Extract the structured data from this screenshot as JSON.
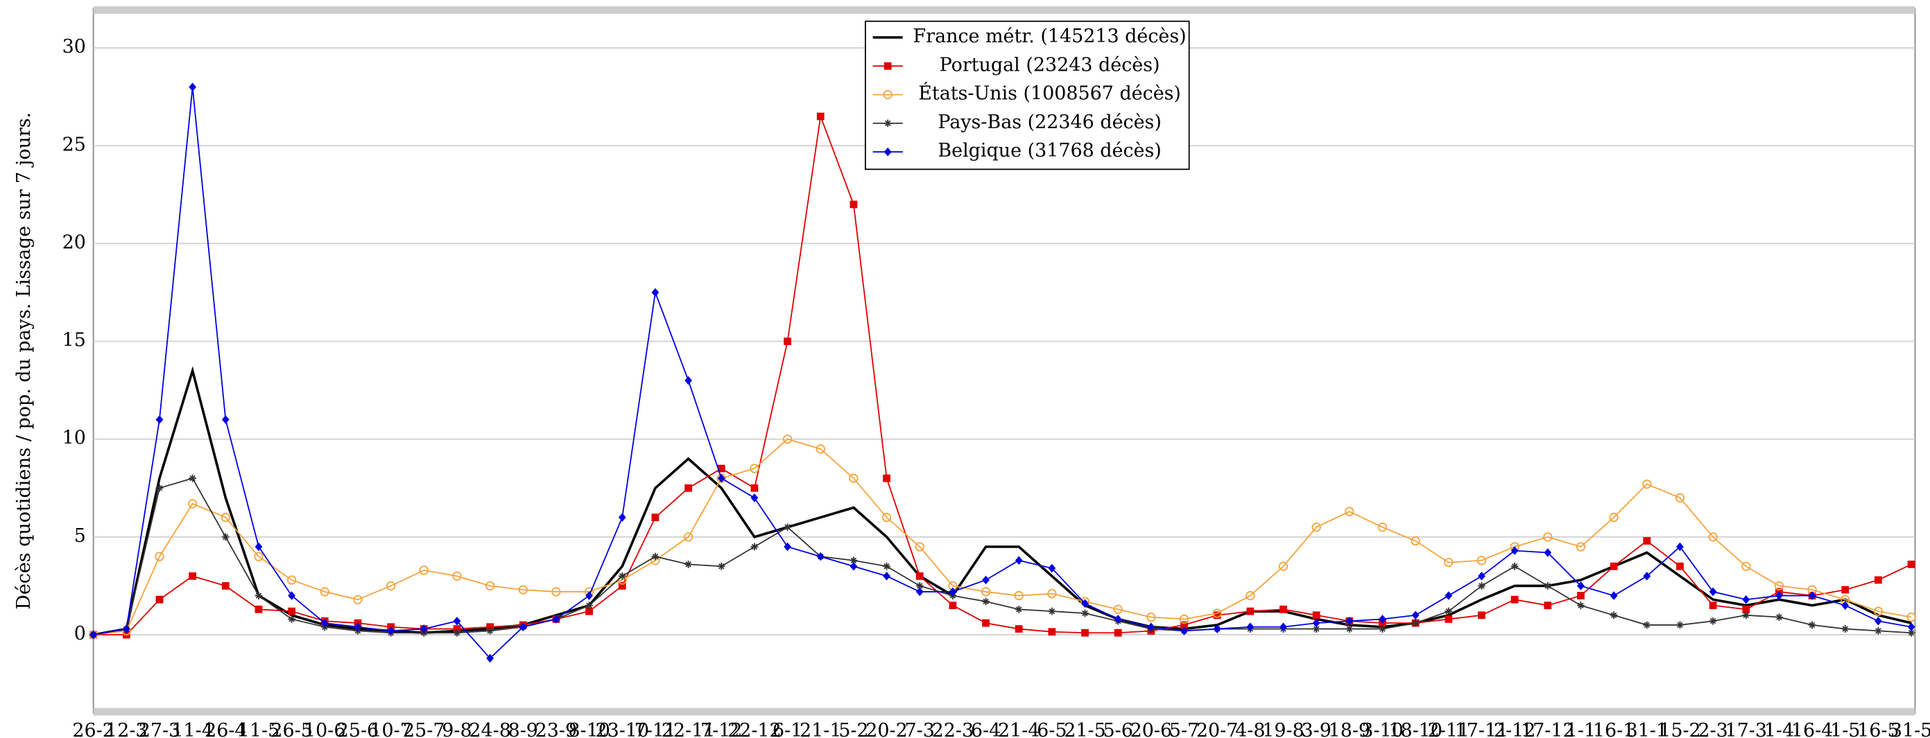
{
  "chart_data": {
    "type": "line",
    "y_label": "Décès quotidiens / pop. du pays. Lissage sur 7 jours.",
    "categories": [
      "26-2",
      "12-3",
      "27-3",
      "11-4",
      "26-4",
      "11-5",
      "26-5",
      "10-6",
      "25-6",
      "10-7",
      "25-7",
      "9-8",
      "24-8",
      "8-9",
      "23-9",
      "8-10",
      "23-10",
      "7-11",
      "22-11",
      "7-12",
      "22-12",
      "6-1",
      "21-1",
      "5-2",
      "20-2",
      "7-3",
      "22-3",
      "6-4",
      "21-4",
      "6-5",
      "21-5",
      "5-6",
      "20-6",
      "5-7",
      "20-7",
      "4-8",
      "19-8",
      "3-9",
      "18-9",
      "3-10",
      "18-10",
      "2-11",
      "17-11",
      "2-12",
      "17-12",
      "1-1",
      "16-1",
      "31-1",
      "15-2",
      "2-3",
      "17-3",
      "1-4",
      "16-4",
      "1-5",
      "16-5",
      "31-5"
    ],
    "series": [
      {
        "name": "France métr. (145213 décès)",
        "color": "#000000",
        "marker": "none",
        "values": [
          0,
          0.3,
          8,
          13.5,
          7,
          2,
          1.0,
          0.5,
          0.3,
          0.2,
          0.1,
          0.2,
          0.3,
          0.5,
          1.0,
          1.5,
          3.5,
          7.5,
          9,
          7.5,
          5,
          5.5,
          6,
          6.5,
          5,
          3,
          2,
          4.5,
          4.5,
          3,
          1.5,
          0.8,
          0.4,
          0.3,
          0.5,
          1.2,
          1.2,
          0.8,
          0.5,
          0.4,
          0.6,
          1.0,
          1.8,
          2.5,
          2.5,
          2.8,
          3.5,
          4.2,
          3.0,
          1.8,
          1.5,
          1.8,
          1.5,
          1.8,
          1.0,
          0.6
        ]
      },
      {
        "name": "Portugal (23243 décès)",
        "color": "#e00000",
        "marker": "square",
        "values": [
          0,
          0,
          1.8,
          3,
          2.5,
          1.3,
          1.2,
          0.7,
          0.6,
          0.4,
          0.3,
          0.3,
          0.4,
          0.5,
          0.8,
          1.2,
          2.5,
          6,
          7.5,
          8.5,
          7.5,
          15,
          26.5,
          22,
          8,
          3,
          1.5,
          0.6,
          0.3,
          0.15,
          0.1,
          0.1,
          0.2,
          0.5,
          1,
          1.2,
          1.3,
          1,
          0.7,
          0.6,
          0.6,
          0.8,
          1.0,
          1.8,
          1.5,
          2,
          3.5,
          4.8,
          3.5,
          1.5,
          1.3,
          2.2,
          2,
          2.3,
          2.8,
          3.6
        ]
      },
      {
        "name": "États-Unis (1008567 décès)",
        "color": "#f5a33c",
        "marker": "circle",
        "values": [
          0,
          0.2,
          4,
          6.7,
          6,
          4,
          2.8,
          2.2,
          1.8,
          2.5,
          3.3,
          3,
          2.5,
          2.3,
          2.2,
          2.2,
          2.8,
          3.8,
          5,
          8,
          8.5,
          10,
          9.5,
          8,
          6,
          4.5,
          2.5,
          2.2,
          2.0,
          2.1,
          1.7,
          1.3,
          0.9,
          0.8,
          1.1,
          2,
          3.5,
          5.5,
          6.3,
          5.5,
          4.8,
          3.7,
          3.8,
          4.5,
          5,
          4.5,
          6,
          7.7,
          7,
          5,
          3.5,
          2.5,
          2.3,
          1.8,
          1.2,
          0.9
        ]
      },
      {
        "name": "Pays-Bas (22346 décès)",
        "color": "#333333",
        "marker": "star",
        "values": [
          0,
          0.3,
          7.5,
          8,
          5,
          2,
          0.8,
          0.4,
          0.2,
          0.1,
          0.1,
          0.1,
          0.2,
          0.4,
          0.8,
          1.5,
          3,
          4,
          3.6,
          3.5,
          4.5,
          5.5,
          4,
          3.8,
          3.5,
          2.5,
          2,
          1.7,
          1.3,
          1.2,
          1.1,
          0.7,
          0.3,
          0.2,
          0.3,
          0.3,
          0.3,
          0.3,
          0.3,
          0.3,
          0.6,
          1.2,
          2.5,
          3.5,
          2.5,
          1.5,
          1,
          0.5,
          0.5,
          0.7,
          1.0,
          0.9,
          0.5,
          0.3,
          0.2,
          0.1
        ]
      },
      {
        "name": "Belgique (31768 décès)",
        "color": "#0000e0",
        "marker": "diamond",
        "values": [
          0,
          0.3,
          11,
          28,
          11,
          4.5,
          2,
          0.6,
          0.4,
          0.2,
          0.3,
          0.7,
          -1.2,
          0.4,
          0.8,
          2,
          6,
          17.5,
          13,
          8,
          7,
          4.5,
          4,
          3.5,
          3,
          2.2,
          2.2,
          2.8,
          3.8,
          3.4,
          1.6,
          0.8,
          0.4,
          0.2,
          0.3,
          0.4,
          0.4,
          0.6,
          0.7,
          0.8,
          1.0,
          2,
          3,
          4.3,
          4.2,
          2.5,
          2,
          3,
          4.5,
          2.2,
          1.8,
          2,
          2,
          1.5,
          0.7,
          0.4
        ]
      }
    ],
    "ylim": [
      -4,
      32
    ],
    "yticks": [
      0,
      5,
      10,
      15,
      20,
      25,
      30
    ],
    "grid": true,
    "legend": "upper center"
  }
}
